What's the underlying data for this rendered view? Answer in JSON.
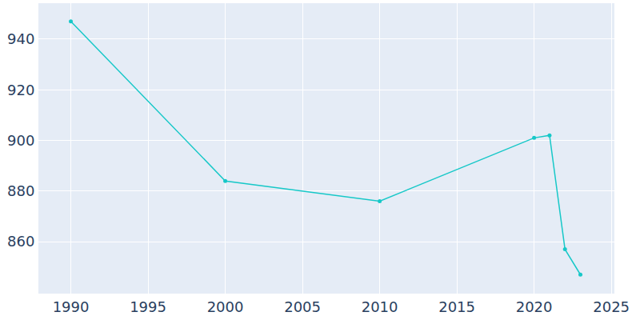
{
  "chart_data": {
    "type": "line",
    "x": [
      1990,
      2000,
      2010,
      2020,
      2021,
      2022,
      2023
    ],
    "values": [
      947,
      884,
      876,
      901,
      902,
      857,
      847
    ],
    "color": "#17c8c8",
    "marker": "circle",
    "xlim": [
      1987.9,
      2025.2
    ],
    "ylim": [
      839.5,
      954.2
    ],
    "xticks": [
      1990,
      1995,
      2000,
      2005,
      2010,
      2015,
      2020,
      2025
    ],
    "yticks": [
      860,
      880,
      900,
      920,
      940
    ],
    "grid": true
  }
}
